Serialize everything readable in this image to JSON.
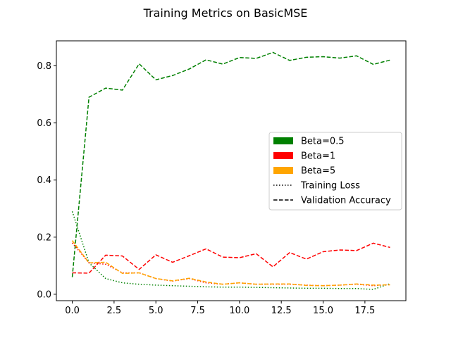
{
  "chart_data": {
    "type": "line",
    "title": "Training Metrics on BasicMSE",
    "xlabel": "",
    "ylabel": "",
    "xlim": [
      -0.95,
      19.95
    ],
    "ylim": [
      -0.0225,
      0.8875
    ],
    "xticks": [
      0,
      2.5,
      5,
      7.5,
      10,
      12.5,
      15,
      17.5
    ],
    "xtick_labels": [
      "0.0",
      "2.5",
      "5.0",
      "7.5",
      "10.0",
      "12.5",
      "15.0",
      "17.5"
    ],
    "yticks": [
      0,
      0.2,
      0.4,
      0.6,
      0.8
    ],
    "ytick_labels": [
      "0.0",
      "0.2",
      "0.4",
      "0.6",
      "0.8"
    ],
    "grid": false,
    "legend_position": "center-right",
    "legend": [
      {
        "label": "Beta=0.5",
        "kind": "patch",
        "color": "#008000"
      },
      {
        "label": "Beta=1",
        "kind": "patch",
        "color": "#ff0000"
      },
      {
        "label": "Beta=5",
        "kind": "patch",
        "color": "#ffa500"
      },
      {
        "label": "Training Loss",
        "kind": "line",
        "style": "dotted",
        "color": "#000000"
      },
      {
        "label": "Validation Accuracy",
        "kind": "line",
        "style": "dashed",
        "color": "#000000"
      }
    ],
    "x": [
      0,
      1,
      2,
      3,
      4,
      5,
      6,
      7,
      8,
      9,
      10,
      11,
      12,
      13,
      14,
      15,
      16,
      17,
      18,
      19
    ],
    "series": [
      {
        "beta": "Beta=0.5",
        "metric": "Training Loss",
        "style": "dotted",
        "color": "#008000",
        "values": [
          0.29,
          0.11,
          0.055,
          0.04,
          0.035,
          0.032,
          0.03,
          0.028,
          0.026,
          0.025,
          0.025,
          0.024,
          0.023,
          0.022,
          0.021,
          0.021,
          0.02,
          0.02,
          0.017,
          0.037
        ]
      },
      {
        "beta": "Beta=0.5",
        "metric": "Validation Accuracy",
        "style": "dashed",
        "color": "#008000",
        "values": [
          0.06,
          0.69,
          0.722,
          0.715,
          0.807,
          0.751,
          0.766,
          0.789,
          0.821,
          0.806,
          0.829,
          0.826,
          0.847,
          0.819,
          0.83,
          0.832,
          0.827,
          0.835,
          0.805,
          0.82
        ]
      },
      {
        "beta": "Beta=1",
        "metric": "Training Loss",
        "style": "dotted",
        "color": "#ff0000",
        "values": [
          0.18,
          0.11,
          0.105,
          0.075,
          0.075,
          0.055,
          0.046,
          0.055,
          0.04,
          0.035,
          0.04,
          0.035,
          0.035,
          0.035,
          0.032,
          0.03,
          0.032,
          0.035,
          0.03,
          0.034
        ]
      },
      {
        "beta": "Beta=1",
        "metric": "Validation Accuracy",
        "style": "dashed",
        "color": "#ff0000",
        "values": [
          0.075,
          0.074,
          0.137,
          0.134,
          0.087,
          0.138,
          0.112,
          0.135,
          0.159,
          0.13,
          0.128,
          0.142,
          0.096,
          0.146,
          0.123,
          0.149,
          0.155,
          0.153,
          0.179,
          0.164
        ]
      },
      {
        "beta": "Beta=5",
        "metric": "Training Loss",
        "style": "dotted",
        "color": "#ffa500",
        "values": [
          0.188,
          0.11,
          0.112,
          0.073,
          0.075,
          0.055,
          0.047,
          0.056,
          0.043,
          0.035,
          0.04,
          0.035,
          0.036,
          0.036,
          0.031,
          0.03,
          0.032,
          0.036,
          0.032,
          0.033
        ]
      },
      {
        "beta": "Beta=5",
        "metric": "Validation Accuracy",
        "style": "dashed",
        "color": "#ffa500",
        "values": [
          0.188,
          0.11,
          0.112,
          0.073,
          0.075,
          0.055,
          0.047,
          0.056,
          0.043,
          0.035,
          0.04,
          0.035,
          0.036,
          0.036,
          0.031,
          0.03,
          0.032,
          0.036,
          0.032,
          0.033
        ]
      }
    ]
  }
}
